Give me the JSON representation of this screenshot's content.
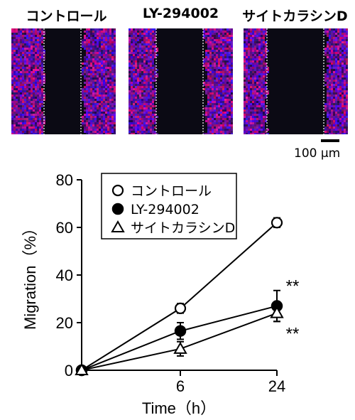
{
  "panels": [
    {
      "title": "コントロール",
      "condition": "control"
    },
    {
      "title": "LY-294002",
      "condition": "ly"
    },
    {
      "title": "サイトカラシンD",
      "condition": "cyto"
    }
  ],
  "scale_bar": {
    "label": "100 μm"
  },
  "chart_data": {
    "type": "line",
    "x": [
      0,
      6,
      24
    ],
    "xticklabels": [
      "6",
      "24"
    ],
    "xlabel": "Time（h）",
    "ylabel": "Migration（%）",
    "ylim": [
      0,
      80
    ],
    "yticks": [
      0,
      20,
      40,
      60,
      80
    ],
    "legend_position": "top-left",
    "series": [
      {
        "name": "コントロール",
        "marker": "circle-open",
        "values": [
          0,
          26,
          62
        ],
        "errors": [
          0,
          2,
          2
        ]
      },
      {
        "name": "LY-294002",
        "marker": "circle-filled",
        "values": [
          0,
          16.5,
          27
        ],
        "errors": [
          0,
          3.5,
          6.5
        ]
      },
      {
        "name": "サイトカラシンD",
        "marker": "triangle-open",
        "values": [
          0,
          9,
          24
        ],
        "errors": [
          0,
          3,
          3.5
        ]
      }
    ],
    "annotations": [
      {
        "text": "**",
        "x": 24,
        "y": 36
      },
      {
        "text": "**",
        "x": 24,
        "y": 16
      }
    ]
  }
}
